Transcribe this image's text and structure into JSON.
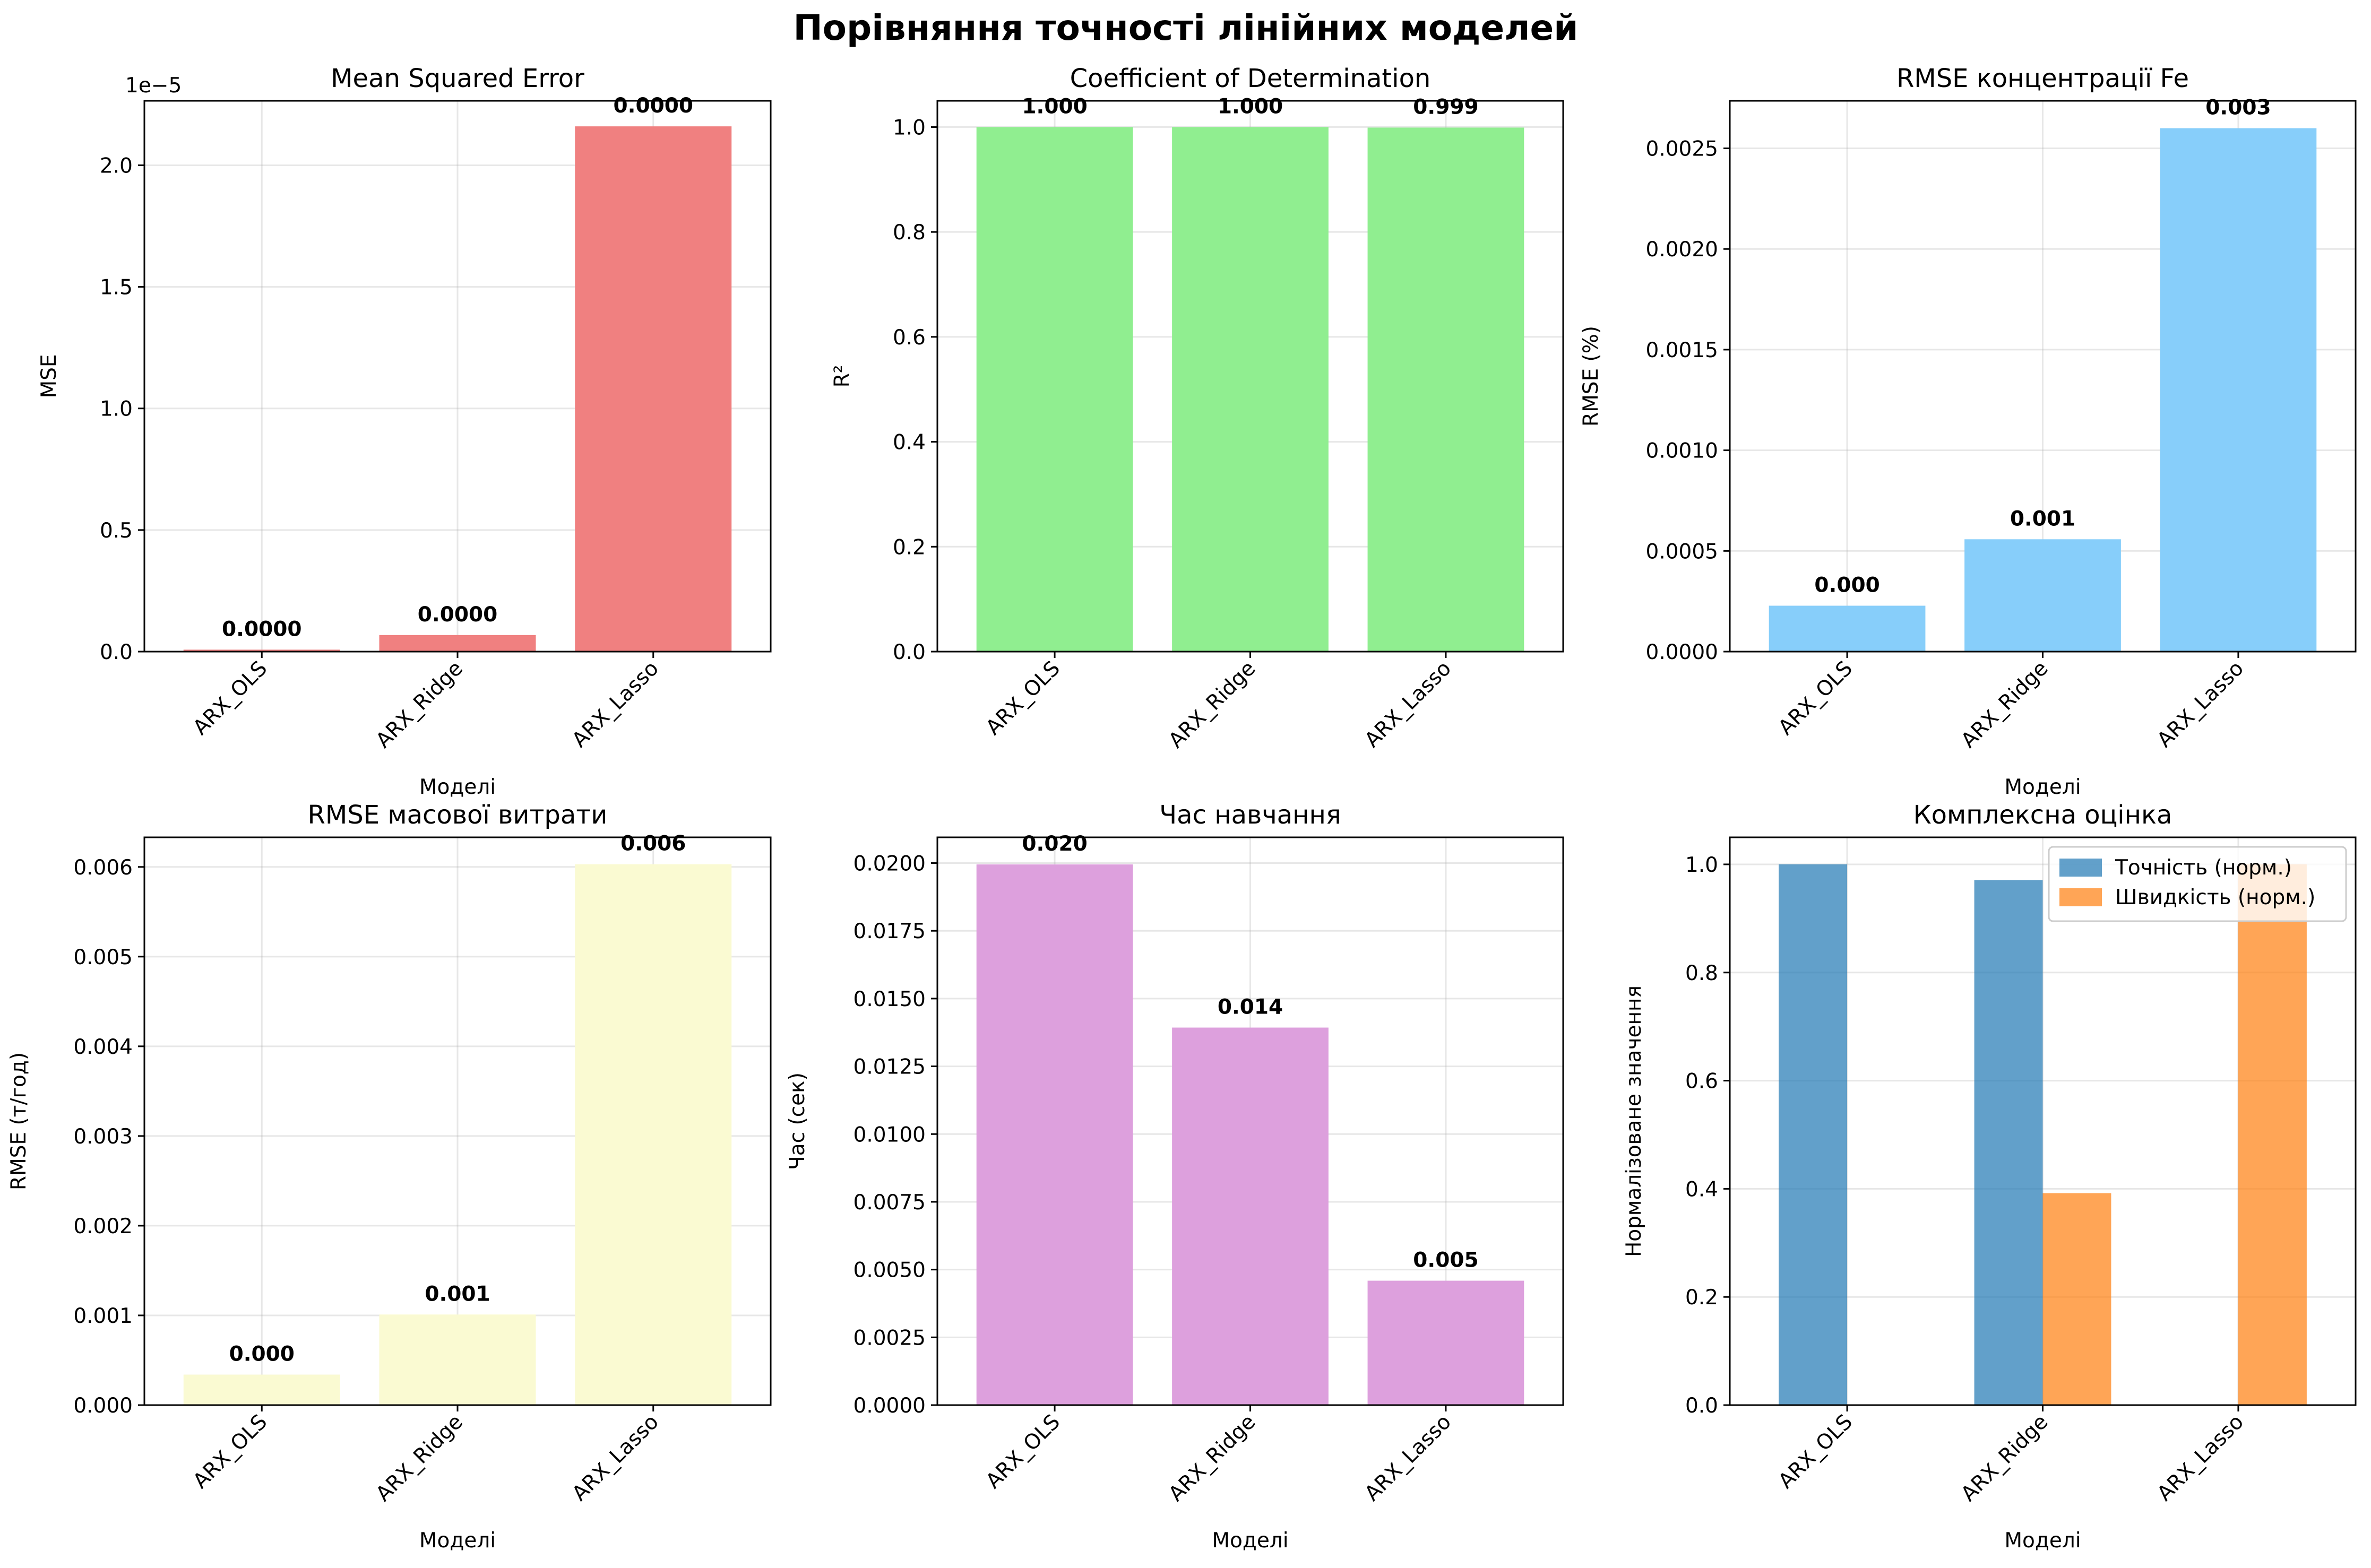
{
  "figure": {
    "title": "Порівняння точності лінійних моделей"
  },
  "chart_data": [
    {
      "id": "mse",
      "type": "bar",
      "title": "Mean Squared Error",
      "xlabel": "Моделі",
      "ylabel": "MSE",
      "categories": [
        "ARX_OLS",
        "ARX_Ridge",
        "ARX_Lasso"
      ],
      "values": [
        8e-08,
        6.8e-07,
        2.16e-05
      ],
      "data_labels": [
        "0.0000",
        "0.0000",
        "0.0000"
      ],
      "ylim": [
        0,
        2.265e-05
      ],
      "yticks": [
        0,
        5e-06,
        1e-05,
        1.5e-05,
        2e-05
      ],
      "ytick_labels": [
        "0.0",
        "0.5",
        "1.0",
        "1.5",
        "2.0"
      ],
      "offset_label": "1e−5",
      "color": "#f08080",
      "grid": true
    },
    {
      "id": "r2",
      "type": "bar",
      "title": "Coefficient of Determination",
      "xlabel": "",
      "ylabel": "R²",
      "categories": [
        "ARX_OLS",
        "ARX_Ridge",
        "ARX_Lasso"
      ],
      "values": [
        1.0,
        1.0,
        0.999
      ],
      "data_labels": [
        "1.000",
        "1.000",
        "0.999"
      ],
      "ylim": [
        0,
        1.05
      ],
      "yticks": [
        0,
        0.2,
        0.4,
        0.6,
        0.8,
        1.0
      ],
      "ytick_labels": [
        "0.0",
        "0.2",
        "0.4",
        "0.6",
        "0.8",
        "1.0"
      ],
      "color": "#90ee90",
      "grid": true
    },
    {
      "id": "rmse_fe",
      "type": "bar",
      "title": "RMSE концентрації Fe",
      "xlabel": "Моделі",
      "ylabel": "RMSE (%)",
      "categories": [
        "ARX_OLS",
        "ARX_Ridge",
        "ARX_Lasso"
      ],
      "values": [
        0.000228,
        0.000558,
        0.0026
      ],
      "data_labels": [
        "0.000",
        "0.001",
        "0.003"
      ],
      "ylim": [
        0,
        0.002736
      ],
      "yticks": [
        0,
        0.0005,
        0.001,
        0.0015,
        0.002,
        0.0025
      ],
      "ytick_labels": [
        "0.0000",
        "0.0005",
        "0.0010",
        "0.0015",
        "0.0020",
        "0.0025"
      ],
      "color": "#87cefa",
      "grid": true
    },
    {
      "id": "rmse_mass",
      "type": "bar",
      "title": "RMSE масової витрати",
      "xlabel": "Моделі",
      "ylabel": "RMSE (т/год)",
      "categories": [
        "ARX_OLS",
        "ARX_Ridge",
        "ARX_Lasso"
      ],
      "values": [
        0.00034,
        0.00101,
        0.00603
      ],
      "data_labels": [
        "0.000",
        "0.001",
        "0.006"
      ],
      "ylim": [
        0,
        0.00633
      ],
      "yticks": [
        0,
        0.001,
        0.002,
        0.003,
        0.004,
        0.005,
        0.006
      ],
      "ytick_labels": [
        "0.000",
        "0.001",
        "0.002",
        "0.003",
        "0.004",
        "0.005",
        "0.006"
      ],
      "color": "#fafad2",
      "grid": true
    },
    {
      "id": "time",
      "type": "bar",
      "title": "Час навчання",
      "xlabel": "Моделі",
      "ylabel": "Час (сек)",
      "categories": [
        "ARX_OLS",
        "ARX_Ridge",
        "ARX_Lasso"
      ],
      "values": [
        0.01995,
        0.01393,
        0.00459
      ],
      "data_labels": [
        "0.020",
        "0.014",
        "0.005"
      ],
      "ylim": [
        0,
        0.02095
      ],
      "yticks": [
        0,
        0.0025,
        0.005,
        0.0075,
        0.01,
        0.0125,
        0.015,
        0.0175,
        0.02
      ],
      "ytick_labels": [
        "0.0000",
        "0.0025",
        "0.0050",
        "0.0075",
        "0.0100",
        "0.0125",
        "0.0150",
        "0.0175",
        "0.0200"
      ],
      "color": "#dda0dd",
      "grid": true
    },
    {
      "id": "composite",
      "type": "bar",
      "title": "Комплексна оцінка",
      "xlabel": "Моделі",
      "ylabel": "Нормалізоване значення",
      "categories": [
        "ARX_OLS",
        "ARX_Ridge",
        "ARX_Lasso"
      ],
      "series": [
        {
          "name": "Точність (норм.)",
          "values": [
            1.0,
            0.971,
            0.0
          ],
          "color": "#1f77b4"
        },
        {
          "name": "Швидкість (норм.)",
          "values": [
            0.0,
            0.392,
            1.0
          ],
          "color": "#ff7f0e"
        }
      ],
      "ylim": [
        0,
        1.05
      ],
      "yticks": [
        0,
        0.2,
        0.4,
        0.6,
        0.8,
        1.0
      ],
      "ytick_labels": [
        "0.0",
        "0.2",
        "0.4",
        "0.6",
        "0.8",
        "1.0"
      ],
      "legend": "top-right",
      "grid": true
    }
  ]
}
